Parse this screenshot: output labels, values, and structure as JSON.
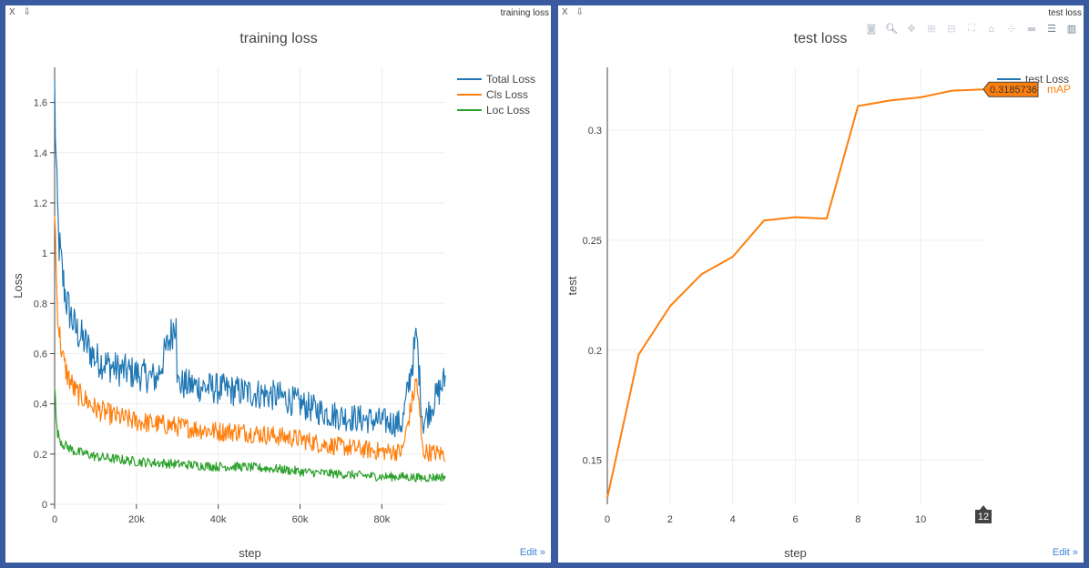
{
  "panes": {
    "left": {
      "controls": "X ⇩",
      "window_title": "training loss",
      "edit_label": "Edit »"
    },
    "right": {
      "controls": "X ⇩",
      "window_title": "test loss",
      "edit_label": "Edit »"
    }
  },
  "modebar_icons": [
    "camera-icon",
    "zoom-icon",
    "pan-icon",
    "zoom-in-icon",
    "zoom-out-icon",
    "autoscale-icon",
    "home-icon",
    "spike-lines-icon",
    "hover-closest-icon",
    "hover-compare-icon",
    "chart-logo-icon"
  ],
  "hover": {
    "value": "0.3185736",
    "series": "mAP",
    "x_badge": "12"
  },
  "chart_data": [
    {
      "type": "line",
      "title": "training loss",
      "xlabel": "step",
      "ylabel": "Loss",
      "xlim": [
        0,
        95500
      ],
      "ylim": [
        0,
        1.74
      ],
      "x_ticks": [
        0,
        20000,
        40000,
        60000,
        80000
      ],
      "x_tick_labels": [
        "0",
        "20k",
        "40k",
        "60k",
        "80k"
      ],
      "y_ticks": [
        0,
        0.2,
        0.4,
        0.6,
        0.8,
        1,
        1.2,
        1.4,
        1.6
      ],
      "y_tick_labels": [
        "0",
        "0.2",
        "0.4",
        "0.6",
        "0.8",
        "1",
        "1.2",
        "1.4",
        "1.6"
      ],
      "grid": true,
      "legend_position": "top-right",
      "series": [
        {
          "name": "Total Loss",
          "color": "#1f77b4",
          "x": [
            0,
            500,
            1000,
            2000,
            3000,
            5000,
            8000,
            10000,
            15000,
            20000,
            25000,
            29700,
            30000,
            35000,
            40000,
            45000,
            50000,
            55000,
            60000,
            65000,
            70000,
            75000,
            80000,
            85000,
            88500,
            90000,
            95500
          ],
          "y": [
            1.65,
            1.25,
            1.05,
            0.9,
            0.8,
            0.7,
            0.63,
            0.58,
            0.54,
            0.52,
            0.5,
            0.74,
            0.48,
            0.47,
            0.46,
            0.45,
            0.44,
            0.43,
            0.4,
            0.37,
            0.35,
            0.34,
            0.33,
            0.32,
            0.67,
            0.32,
            0.5
          ]
        },
        {
          "name": "Cls Loss",
          "color": "#ff7f0e",
          "x": [
            0,
            500,
            1000,
            2000,
            3000,
            5000,
            8000,
            10000,
            15000,
            20000,
            25000,
            30000,
            35000,
            40000,
            45000,
            50000,
            55000,
            60000,
            65000,
            70000,
            75000,
            80000,
            85000,
            88500,
            90000,
            95500
          ],
          "y": [
            1.2,
            0.85,
            0.7,
            0.58,
            0.52,
            0.45,
            0.41,
            0.38,
            0.35,
            0.33,
            0.32,
            0.31,
            0.3,
            0.29,
            0.29,
            0.28,
            0.27,
            0.26,
            0.24,
            0.23,
            0.22,
            0.21,
            0.21,
            0.5,
            0.21,
            0.2
          ]
        },
        {
          "name": "Loc Loss",
          "color": "#2ca02c",
          "x": [
            0,
            500,
            1000,
            2000,
            3000,
            5000,
            8000,
            10000,
            15000,
            20000,
            25000,
            30000,
            35000,
            40000,
            45000,
            50000,
            55000,
            60000,
            65000,
            70000,
            75000,
            80000,
            85000,
            90000,
            95500
          ],
          "y": [
            0.48,
            0.3,
            0.27,
            0.24,
            0.23,
            0.21,
            0.2,
            0.19,
            0.18,
            0.17,
            0.165,
            0.16,
            0.155,
            0.15,
            0.15,
            0.145,
            0.14,
            0.13,
            0.125,
            0.12,
            0.115,
            0.11,
            0.11,
            0.105,
            0.11
          ]
        }
      ]
    },
    {
      "type": "line",
      "title": "test loss",
      "xlabel": "step",
      "ylabel": "test",
      "xlim": [
        0,
        12
      ],
      "ylim": [
        0.13,
        0.3286
      ],
      "x_ticks": [
        0,
        2,
        4,
        6,
        8,
        10
      ],
      "x_tick_labels": [
        "0",
        "2",
        "4",
        "6",
        "8",
        "10"
      ],
      "y_ticks": [
        0.15,
        0.2,
        0.25,
        0.3
      ],
      "y_tick_labels": [
        "0.15",
        "0.2",
        "0.25",
        "0.3"
      ],
      "grid": true,
      "legend_position": "top-right",
      "series": [
        {
          "name": "test Loss",
          "legend_label": "test Loss",
          "color": "#ff7f0e",
          "x": [
            0,
            1,
            2,
            3,
            4,
            5,
            6,
            7,
            8,
            9,
            10,
            11,
            12
          ],
          "y": [
            0.133,
            0.198,
            0.22,
            0.2345,
            0.2425,
            0.259,
            0.2605,
            0.2598,
            0.311,
            0.3135,
            0.315,
            0.318,
            0.3185736
          ]
        }
      ]
    }
  ]
}
